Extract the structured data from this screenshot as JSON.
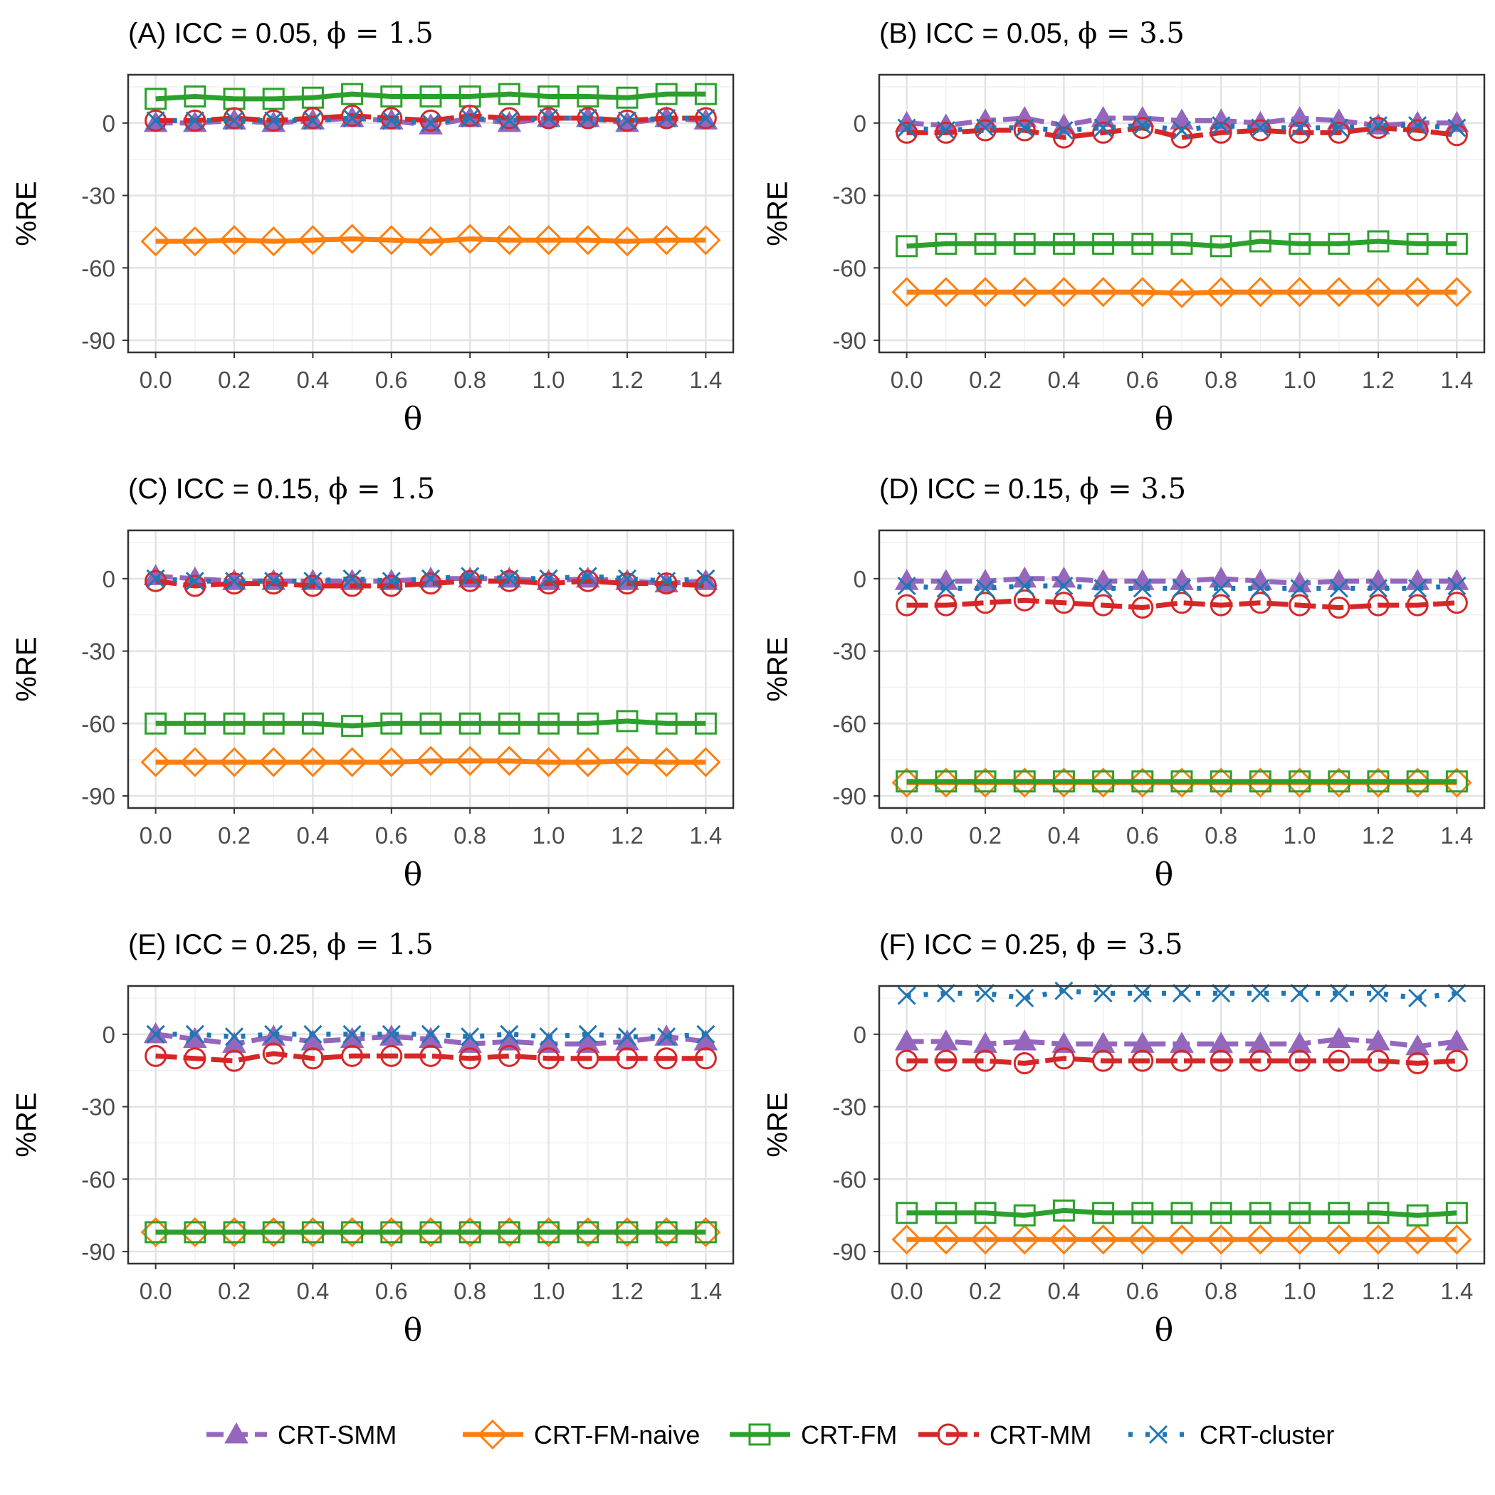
{
  "chart_data": {
    "type": "line",
    "x": [
      0.0,
      0.1,
      0.2,
      0.3,
      0.4,
      0.5,
      0.6,
      0.7,
      0.8,
      0.9,
      1.0,
      1.1,
      1.2,
      1.3,
      1.4
    ],
    "x_ticks": [
      "0.0",
      "0.2",
      "0.4",
      "0.6",
      "0.8",
      "1.0",
      "1.2",
      "1.4"
    ],
    "y_ticks": [
      "0",
      "-30",
      "-60",
      "-90"
    ],
    "xlabel": "θ",
    "ylabel": "%RE",
    "xlim": [
      -0.07,
      1.47
    ],
    "ylim": [
      -95,
      20
    ],
    "series_meta": [
      {
        "key": "smm",
        "name": "CRT-SMM",
        "color": "#9467bd",
        "marker": "triangle",
        "dash": "24 10"
      },
      {
        "key": "naive",
        "name": "CRT-FM-naive",
        "color": "#ff7f0e",
        "marker": "diamond",
        "dash": ""
      },
      {
        "key": "fm",
        "name": "CRT-FM",
        "color": "#2ca02c",
        "marker": "square",
        "dash": ""
      },
      {
        "key": "mm",
        "name": "CRT-MM",
        "color": "#d62728",
        "marker": "circle",
        "dash": "30 9"
      },
      {
        "key": "cluster",
        "name": "CRT-cluster",
        "color": "#1f77b4",
        "marker": "x",
        "dash": "6 18"
      }
    ],
    "panels": [
      {
        "label": "(A)",
        "icc": "0.05",
        "phi": "1.5",
        "series": {
          "smm": [
            0,
            0,
            1,
            0,
            1,
            2,
            1,
            -1,
            2,
            0,
            2,
            2,
            0,
            2,
            1
          ],
          "naive": [
            -49,
            -49,
            -48.5,
            -49,
            -48.5,
            -48,
            -48.5,
            -49,
            -48,
            -48.5,
            -48.5,
            -48.5,
            -49,
            -48.5,
            -48.5
          ],
          "fm": [
            10,
            11,
            10,
            10,
            10.5,
            12,
            11,
            11,
            11,
            12,
            11,
            11,
            10.5,
            12,
            12
          ],
          "mm": [
            1,
            1,
            2,
            1,
            2,
            3,
            2,
            1,
            3,
            2,
            2,
            2,
            1,
            2,
            2
          ],
          "cluster": [
            1,
            1,
            1,
            1,
            1,
            2,
            1,
            0,
            2,
            1,
            2,
            2,
            1,
            2,
            2
          ]
        }
      },
      {
        "label": "(B)",
        "icc": "0.05",
        "phi": "3.5",
        "series": {
          "smm": [
            0,
            -1,
            1,
            2,
            -1,
            2,
            2,
            1,
            1,
            0,
            2,
            1,
            -1,
            0,
            0
          ],
          "naive": [
            -70,
            -70,
            -70,
            -70,
            -70,
            -70,
            -70,
            -70.5,
            -70,
            -70,
            -70,
            -70,
            -70,
            -70,
            -70
          ],
          "fm": [
            -51,
            -50,
            -50,
            -50,
            -50,
            -50,
            -50,
            -50,
            -51,
            -49,
            -50,
            -50,
            -49,
            -50,
            -50
          ],
          "mm": [
            -4,
            -4,
            -3,
            -3,
            -6,
            -4,
            -2,
            -6,
            -4,
            -3,
            -4,
            -4,
            -2,
            -3,
            -5
          ],
          "cluster": [
            -2,
            -3,
            -2,
            -2,
            -3,
            -2,
            -1,
            -3,
            -1,
            -2,
            -2,
            -2,
            -1,
            -1,
            -2
          ]
        }
      },
      {
        "label": "(C)",
        "icc": "0.15",
        "phi": "1.5",
        "series": {
          "smm": [
            1,
            0,
            -1,
            -1,
            -1,
            -1,
            -1,
            0,
            0,
            0,
            -1,
            0,
            -1,
            -2,
            -1
          ],
          "naive": [
            -76,
            -76,
            -76,
            -76,
            -76,
            -76,
            -76,
            -75.5,
            -75.5,
            -75.5,
            -76,
            -76,
            -75.5,
            -76,
            -76
          ],
          "fm": [
            -60,
            -60,
            -60,
            -60,
            -60,
            -61,
            -60,
            -60,
            -60,
            -60,
            -60,
            -60,
            -59,
            -60,
            -60
          ],
          "mm": [
            -1,
            -3,
            -2,
            -2,
            -3,
            -3,
            -3,
            -2,
            -1,
            -1,
            -2,
            -1,
            -2,
            -2,
            -3
          ],
          "cluster": [
            0,
            -1,
            -1,
            -1,
            -1,
            0,
            -1,
            0,
            1,
            0,
            0,
            1,
            0,
            -1,
            0
          ]
        }
      },
      {
        "label": "(D)",
        "icc": "0.15",
        "phi": "3.5",
        "series": {
          "smm": [
            -1,
            -1,
            -1,
            0,
            0,
            -1,
            -1,
            -1,
            0,
            -1,
            -2,
            -1,
            -1,
            -1,
            -1
          ],
          "naive": [
            -84.5,
            -84.5,
            -84.5,
            -84.5,
            -84.5,
            -84.5,
            -84.5,
            -84.5,
            -84.5,
            -84.5,
            -84.5,
            -84.5,
            -84.5,
            -84.5,
            -84.5
          ],
          "fm": [
            -84,
            -84,
            -84,
            -84,
            -84,
            -84,
            -84,
            -84,
            -84,
            -84,
            -84,
            -84,
            -84,
            -84,
            -84
          ],
          "mm": [
            -11,
            -11,
            -10,
            -9,
            -10,
            -11,
            -12,
            -10,
            -11,
            -10,
            -11,
            -12,
            -11,
            -11,
            -10
          ],
          "cluster": [
            -3,
            -4,
            -4,
            -3,
            -3,
            -4,
            -4,
            -4,
            -4,
            -4,
            -4,
            -4,
            -4,
            -4,
            -3
          ]
        }
      },
      {
        "label": "(E)",
        "icc": "0.25",
        "phi": "1.5",
        "series": {
          "smm": [
            0,
            -2,
            -4,
            -1,
            -3,
            -2,
            -1,
            -2,
            -4,
            -3,
            -4,
            -4,
            -3,
            -1,
            -3
          ],
          "naive": [
            -82,
            -82,
            -82,
            -82,
            -82,
            -82,
            -82,
            -82,
            -82,
            -82,
            -82,
            -82,
            -82,
            -82,
            -82
          ],
          "fm": [
            -82,
            -82,
            -82,
            -82,
            -82,
            -82,
            -82,
            -82,
            -82,
            -82,
            -82,
            -82,
            -82,
            -82,
            -82
          ],
          "mm": [
            -9,
            -10,
            -11,
            -8,
            -10,
            -9,
            -9,
            -9,
            -10,
            -9,
            -10,
            -10,
            -10,
            -10,
            -10
          ],
          "cluster": [
            0,
            0,
            -1,
            0,
            0,
            0,
            0,
            0,
            -1,
            0,
            -1,
            0,
            -1,
            -1,
            0
          ]
        }
      },
      {
        "label": "(F)",
        "icc": "0.25",
        "phi": "3.5",
        "series": {
          "smm": [
            -3,
            -3,
            -4,
            -3,
            -4,
            -4,
            -4,
            -4,
            -4,
            -4,
            -4,
            -2,
            -3,
            -5,
            -3
          ],
          "naive": [
            -85,
            -85,
            -85,
            -85,
            -85,
            -85,
            -85,
            -85,
            -85,
            -85,
            -85,
            -85,
            -85,
            -85,
            -85
          ],
          "fm": [
            -74,
            -74,
            -74,
            -75,
            -73,
            -74,
            -74,
            -74,
            -74,
            -74,
            -74,
            -74,
            -74,
            -75,
            -74
          ],
          "mm": [
            -11,
            -11,
            -11,
            -12,
            -10,
            -11,
            -11,
            -11,
            -11,
            -11,
            -11,
            -11,
            -11,
            -12,
            -11
          ],
          "cluster": [
            16,
            17,
            17,
            15,
            18,
            17,
            17,
            17,
            17,
            17,
            17,
            17,
            17,
            15,
            17
          ]
        }
      }
    ]
  }
}
